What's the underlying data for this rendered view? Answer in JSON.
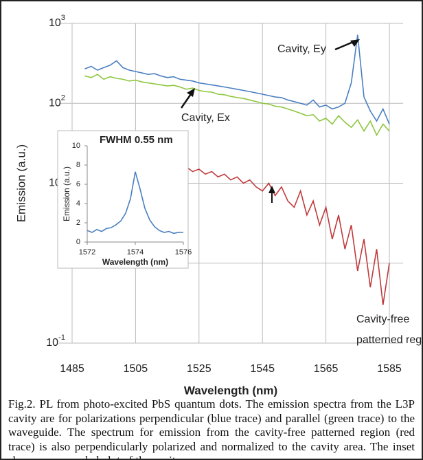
{
  "chart_data": [
    {
      "type": "line",
      "log_y": true,
      "grid": true,
      "x_label": "Wavelength (nm)",
      "y_label": "Emission (a.u.)",
      "annotations": [
        "Cavity, Ey",
        "Cavity, Ex",
        "Cavity-free",
        "patterned region"
      ],
      "xlim": [
        1485,
        1585
      ],
      "xticks": [
        1485,
        1505,
        1525,
        1545,
        1565,
        1585
      ],
      "ylim": [
        0.1,
        1000
      ],
      "yticks": [
        {
          "value": 0.1,
          "label": "10-1"
        },
        1,
        {
          "value": 10,
          "label": "101"
        },
        {
          "value": 100,
          "label": "102"
        },
        {
          "value": 1000,
          "label": "103"
        }
      ],
      "x": [
        1489,
        1491,
        1493,
        1495,
        1497,
        1499,
        1501,
        1503,
        1505,
        1507,
        1509,
        1511,
        1513,
        1515,
        1517,
        1519,
        1521,
        1523,
        1525,
        1527,
        1529,
        1531,
        1533,
        1535,
        1537,
        1539,
        1541,
        1543,
        1545,
        1547,
        1549,
        1551,
        1553,
        1555,
        1557,
        1559,
        1561,
        1563,
        1565,
        1567,
        1569,
        1571,
        1573,
        1575,
        1577,
        1579,
        1581,
        1583,
        1585
      ],
      "series": [
        {
          "name": "Cavity, Ex",
          "color": "#8dc63f",
          "values": [
            220,
            210,
            230,
            200,
            215,
            205,
            200,
            190,
            195,
            185,
            180,
            175,
            170,
            165,
            168,
            160,
            150,
            155,
            145,
            140,
            138,
            130,
            128,
            122,
            118,
            115,
            110,
            105,
            100,
            98,
            92,
            90,
            85,
            80,
            75,
            70,
            72,
            60,
            65,
            55,
            70,
            58,
            50,
            62,
            45,
            60,
            40,
            55,
            45
          ]
        },
        {
          "name": "Cavity, Ey",
          "color": "#4a7fc1",
          "values": [
            270,
            290,
            260,
            280,
            300,
            340,
            280,
            260,
            250,
            240,
            230,
            235,
            220,
            210,
            215,
            200,
            195,
            190,
            180,
            175,
            170,
            165,
            160,
            155,
            150,
            145,
            140,
            135,
            130,
            125,
            120,
            118,
            110,
            105,
            100,
            95,
            110,
            90,
            95,
            85,
            90,
            100,
            180,
            720,
            120,
            80,
            60,
            85,
            55
          ]
        },
        {
          "name": "Cavity-free",
          "color": "#c0393b",
          "values": [
            24,
            22,
            25,
            21,
            23,
            20,
            22,
            19,
            20,
            18,
            19,
            17,
            18,
            16,
            17,
            15,
            16,
            14,
            15,
            13,
            14,
            12,
            13,
            11,
            12,
            10,
            11,
            9,
            8,
            10,
            7,
            9,
            6,
            5,
            8,
            4,
            6,
            3,
            5,
            2,
            4,
            1.5,
            3,
            0.8,
            2,
            0.5,
            1.5,
            0.3,
            1
          ]
        }
      ]
    },
    {
      "type": "line",
      "title": "FWHM 0.55 nm",
      "x_label": "Wavelength (nm)",
      "y_label": "Emission (a.u.)",
      "xlim": [
        1572,
        1576
      ],
      "xticks": [
        1572,
        1574,
        1576
      ],
      "ylim": [
        0,
        10
      ],
      "yticks": [
        0,
        2,
        4,
        6,
        8,
        10
      ],
      "x": [
        1572,
        1572.2,
        1572.4,
        1572.6,
        1572.8,
        1573,
        1573.2,
        1573.4,
        1573.6,
        1573.8,
        1574,
        1574.2,
        1574.4,
        1574.6,
        1574.8,
        1575,
        1575.2,
        1575.4,
        1575.6,
        1575.8,
        1576
      ],
      "color": "#4a7fc1",
      "values": [
        1.2,
        1.0,
        1.3,
        1.1,
        1.4,
        1.5,
        1.8,
        2.2,
        3.0,
        4.5,
        7.3,
        5.5,
        3.5,
        2.3,
        1.6,
        1.2,
        1.0,
        1.1,
        0.9,
        1.0,
        1.0
      ]
    }
  ],
  "caption": "Fig.2. PL from photo-excited PbS quantum dots.  The emission spectra from the L3P cavity are for polarizations perpendicular (blue trace) and parallel (green trace) to the waveguide.  The spectrum for emission from the cavity-free patterned region (red trace) is also perpendicularly polarized and normalized to the cavity area.  The inset shows an expanded plot of the cavity resonance."
}
